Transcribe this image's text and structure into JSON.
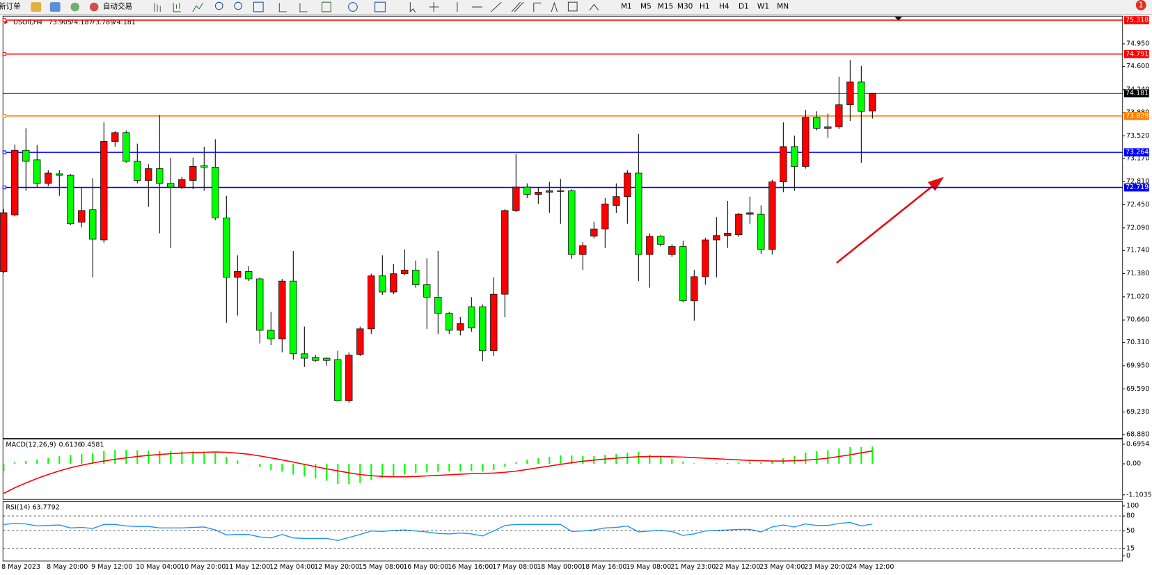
{
  "toolbar": {
    "new_order": "新订单",
    "auto_trading": "自动交易",
    "timeframes": [
      "M1",
      "M5",
      "M15",
      "M30",
      "H1",
      "H4",
      "D1",
      "W1",
      "MN"
    ],
    "badge": "1"
  },
  "chart_data": [
    {
      "type": "candlestick",
      "title": "USOil,H4",
      "categories": [
        "8 May 2023",
        null,
        null,
        null,
        "8 May 20:00",
        null,
        null,
        null,
        "9 May 12:00",
        null,
        null,
        null,
        "10 May 04:00",
        null,
        null,
        null,
        "10 May 20:00",
        null,
        null,
        null,
        "11 May 12:00",
        null,
        null,
        null,
        "12 May 04:00",
        null,
        null,
        null,
        "12 May 20:00",
        null,
        null,
        null,
        "15 May 08:00",
        null,
        null,
        null,
        "16 May 00:00",
        null,
        null,
        null,
        "16 May 16:00",
        null,
        null,
        null,
        "17 May 08:00",
        null,
        null,
        null,
        "18 May 00:00",
        null,
        null,
        null,
        "18 May 16:00",
        null,
        null,
        null,
        "19 May 08:00",
        null,
        null,
        null,
        "21 May 23:00",
        null,
        null,
        null,
        "22 May 12:00",
        null,
        null,
        null,
        "23 May 04:00",
        null,
        null,
        null,
        "23 May 20:00",
        null,
        null,
        null,
        "24 May 12:00",
        null,
        null
      ],
      "open": [
        71.413,
        72.292,
        73.296,
        73.148,
        72.782,
        72.931,
        72.908,
        72.178,
        72.372,
        71.904,
        73.433,
        73.57,
        73.125,
        72.828,
        73.011,
        72.782,
        72.725,
        72.828,
        73.056,
        73.034,
        72.246,
        71.322,
        71.413,
        71.299,
        70.5,
        70.364,
        71.265,
        70.135,
        70.078,
        70.067,
        70.044,
        69.405,
        70.124,
        70.523,
        71.345,
        71.094,
        71.379,
        71.436,
        71.208,
        71.014,
        70.763,
        70.5,
        70.866,
        70.866,
        70.181,
        71.06,
        72.36,
        72.725,
        72.611,
        72.646,
        72.657,
        72.668,
        71.676,
        71.961,
        72.075,
        72.44,
        72.577,
        72.942,
        71.676,
        71.961,
        71.676,
        71.801,
        70.957,
        71.333,
        71.904,
        71.972,
        71.984,
        72.303,
        72.303,
        71.756,
        72.805,
        73.353,
        73.045,
        73.809,
        73.638,
        73.661,
        74.003,
        74.357,
        73.905
      ],
      "high": [
        72.383,
        73.387,
        73.638,
        73.376,
        72.988,
        72.988,
        72.931,
        72.725,
        72.862,
        73.73,
        73.593,
        73.604,
        73.399,
        73.079,
        73.844,
        73.182,
        72.885,
        73.182,
        73.353,
        73.467,
        72.589,
        71.664,
        71.493,
        71.322,
        70.786,
        71.299,
        71.733,
        70.558,
        70.113,
        70.078,
        70.181,
        70.158,
        70.558,
        71.379,
        71.664,
        71.527,
        71.756,
        71.584,
        71.619,
        71.733,
        70.786,
        70.706,
        71.014,
        70.9,
        71.322,
        72.383,
        73.239,
        72.782,
        72.725,
        72.805,
        72.851,
        72.691,
        71.87,
        72.189,
        72.554,
        72.782,
        72.988,
        73.547,
        72.007,
        71.984,
        71.835,
        71.893,
        71.436,
        71.938,
        72.258,
        72.509,
        72.326,
        72.577,
        72.44,
        72.84,
        73.73,
        73.524,
        73.923,
        73.901,
        73.866,
        74.437,
        74.699,
        74.608,
        74.187
      ],
      "low": [
        71.39,
        72.269,
        72.668,
        72.725,
        72.737,
        72.589,
        72.132,
        72.098,
        71.322,
        71.858,
        73.353,
        73.102,
        72.782,
        72.417,
        72.007,
        71.778,
        72.691,
        72.691,
        72.668,
        72.212,
        70.615,
        70.729,
        71.265,
        70.295,
        70.272,
        70.158,
        70.044,
        69.93,
        70.01,
        69.953,
        69.394,
        69.371,
        70.101,
        70.443,
        71.048,
        71.06,
        71.356,
        71.162,
        70.523,
        70.443,
        70.443,
        70.421,
        70.478,
        70.021,
        70.101,
        70.706,
        72.337,
        72.554,
        72.463,
        72.326,
        72.155,
        71.607,
        71.436,
        71.927,
        71.778,
        72.326,
        72.155,
        71.265,
        71.162,
        71.801,
        71.641,
        70.934,
        70.649,
        71.208,
        71.322,
        71.778,
        71.95,
        72.155,
        71.687,
        71.676,
        72.646,
        72.668,
        73.011,
        73.604,
        73.49,
        73.627,
        73.752,
        73.102,
        73.789
      ],
      "close": [
        72.326,
        73.296,
        73.125,
        72.782,
        72.942,
        72.908,
        72.155,
        72.36,
        71.915,
        73.433,
        73.57,
        73.125,
        72.828,
        73.011,
        72.782,
        72.725,
        72.84,
        73.045,
        73.034,
        72.246,
        71.322,
        71.413,
        71.299,
        70.5,
        70.364,
        71.265,
        70.135,
        70.067,
        70.033,
        70.033,
        69.405,
        70.113,
        70.523,
        71.345,
        71.094,
        71.379,
        71.436,
        71.208,
        71.014,
        70.763,
        70.5,
        70.603,
        70.535,
        70.181,
        71.06,
        72.36,
        72.725,
        72.611,
        72.646,
        72.668,
        72.668,
        71.676,
        71.813,
        72.075,
        72.463,
        72.577,
        72.942,
        71.676,
        71.961,
        71.835,
        71.801,
        70.957,
        71.333,
        71.904,
        71.972,
        72.007,
        72.303,
        72.326,
        71.756,
        72.805,
        73.353,
        73.045,
        73.809,
        73.638,
        73.661,
        74.003,
        74.357,
        73.901,
        74.181
      ],
      "up_color": "#ff0000",
      "down_color": "#00ff00",
      "ylim": [
        68.82,
        75.38
      ],
      "yticks": [
        {
          "value": 74.95,
          "label": "74.950"
        },
        {
          "value": 74.6,
          "label": "74.600"
        },
        {
          "value": 74.24,
          "label": "74.240"
        },
        {
          "value": 73.88,
          "label": "73.880"
        },
        {
          "value": 73.52,
          "label": "73.520"
        },
        {
          "value": 73.17,
          "label": "73.170"
        },
        {
          "value": 72.81,
          "label": "72.810"
        },
        {
          "value": 72.45,
          "label": "72.450"
        },
        {
          "value": 72.09,
          "label": "72.090"
        },
        {
          "value": 71.74,
          "label": "71.740"
        },
        {
          "value": 71.38,
          "label": "71.380"
        },
        {
          "value": 71.02,
          "label": "71.020"
        },
        {
          "value": 70.66,
          "label": "70.660"
        },
        {
          "value": 70.31,
          "label": "70.310"
        },
        {
          "value": 69.95,
          "label": "69.950"
        },
        {
          "value": 69.59,
          "label": "69.590"
        },
        {
          "value": 69.23,
          "label": "69.230"
        },
        {
          "value": 68.88,
          "label": "68.880"
        }
      ],
      "levels": [
        {
          "value": 75.318,
          "color": "#ff0000"
        },
        {
          "value": 74.791,
          "color": "#ff0000"
        },
        {
          "value": 73.829,
          "color": "#ff8000"
        },
        {
          "value": 73.264,
          "color": "#0000ff"
        },
        {
          "value": 72.719,
          "color": "#0000ff"
        }
      ]
    },
    {
      "type": "macd",
      "title": "MACD(12,26,9)",
      "histogram": [
        -0.25,
        0.05,
        0.1,
        0.15,
        0.2,
        0.27,
        0.32,
        0.35,
        0.38,
        0.45,
        0.5,
        0.5,
        0.48,
        0.47,
        0.46,
        0.45,
        0.44,
        0.44,
        0.43,
        0.38,
        0.25,
        0.12,
        0.0,
        -0.12,
        -0.22,
        -0.28,
        -0.38,
        -0.45,
        -0.52,
        -0.6,
        -0.72,
        -0.72,
        -0.68,
        -0.58,
        -0.5,
        -0.44,
        -0.38,
        -0.33,
        -0.3,
        -0.28,
        -0.27,
        -0.26,
        -0.25,
        -0.27,
        -0.22,
        -0.1,
        0.05,
        0.15,
        0.2,
        0.25,
        0.3,
        0.3,
        0.28,
        0.28,
        0.32,
        0.35,
        0.4,
        0.42,
        0.32,
        0.25,
        0.18,
        0.08,
        0.02,
        0.01,
        0.02,
        0.03,
        0.05,
        0.08,
        0.05,
        0.1,
        0.2,
        0.28,
        0.4,
        0.45,
        0.48,
        0.55,
        0.6,
        0.6,
        0.6136
      ],
      "signal": [
        -1.05,
        -0.85,
        -0.68,
        -0.52,
        -0.38,
        -0.25,
        -0.14,
        -0.05,
        0.03,
        0.1,
        0.16,
        0.21,
        0.26,
        0.3,
        0.33,
        0.36,
        0.38,
        0.4,
        0.41,
        0.42,
        0.41,
        0.38,
        0.34,
        0.28,
        0.21,
        0.14,
        0.06,
        -0.02,
        -0.1,
        -0.18,
        -0.25,
        -0.32,
        -0.38,
        -0.42,
        -0.45,
        -0.46,
        -0.46,
        -0.45,
        -0.43,
        -0.41,
        -0.39,
        -0.37,
        -0.35,
        -0.34,
        -0.33,
        -0.3,
        -0.26,
        -0.2,
        -0.14,
        -0.08,
        -0.02,
        0.04,
        0.09,
        0.13,
        0.17,
        0.2,
        0.23,
        0.25,
        0.26,
        0.26,
        0.25,
        0.24,
        0.22,
        0.2,
        0.18,
        0.16,
        0.14,
        0.12,
        0.11,
        0.1,
        0.1,
        0.11,
        0.13,
        0.16,
        0.2,
        0.26,
        0.32,
        0.39,
        0.4581
      ],
      "color": "#00ff00",
      "signal_color": "#ff0000",
      "ylim": [
        -1.262,
        0.876
      ],
      "yticks": [
        0.6954,
        {
          "value": 0,
          "label": "0.00"
        },
        -1.1035
      ]
    },
    {
      "type": "line",
      "title": "RSI(14)",
      "values": [
        63,
        65,
        64,
        60,
        61,
        62,
        56,
        57,
        55,
        63,
        63,
        60,
        59,
        59,
        56,
        56,
        56,
        57,
        58,
        52,
        42,
        43,
        43,
        38,
        36,
        43,
        36,
        35,
        35,
        35,
        31,
        37,
        43,
        50,
        49,
        51,
        52,
        50,
        48,
        45,
        44,
        46,
        44,
        40,
        50,
        61,
        63,
        63,
        63,
        63,
        63,
        49,
        50,
        52,
        56,
        57,
        60,
        48,
        50,
        51,
        49,
        41,
        44,
        50,
        51,
        52,
        53,
        53,
        48,
        58,
        62,
        58,
        64,
        61,
        61,
        65,
        67,
        60,
        63.7792
      ],
      "color": "#1e90ff",
      "ylim": [
        -10.3,
        107.4
      ],
      "yticks": [
        100,
        80,
        50,
        15,
        0
      ],
      "levels": [
        80,
        50,
        15
      ]
    }
  ]
}
